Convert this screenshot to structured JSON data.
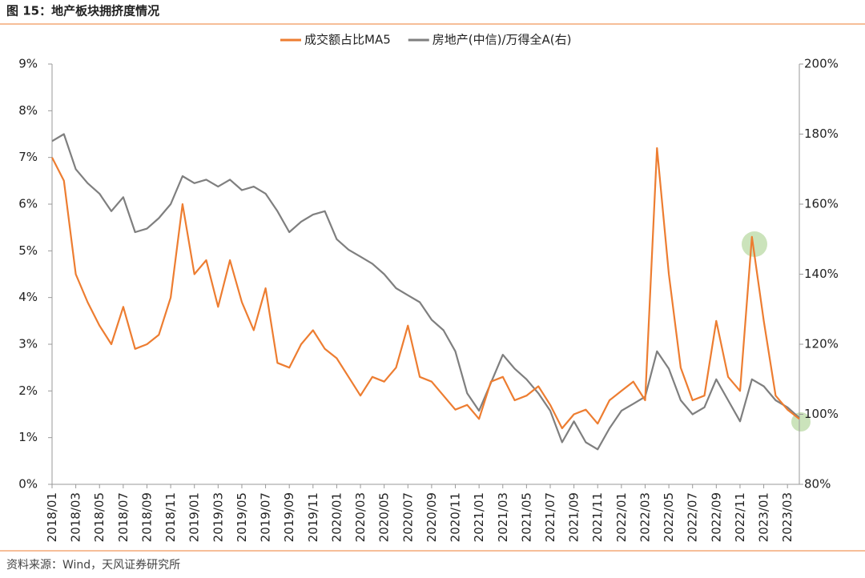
{
  "title": "图 15：地产板块拥挤度情况",
  "source": "资料来源：Wind，天风证券研究所",
  "chart_data": {
    "type": "line",
    "categories": [
      "2018/01",
      null,
      "2018/03",
      null,
      "2018/05",
      null,
      "2018/07",
      null,
      "2018/09",
      null,
      "2018/11",
      null,
      "2019/01",
      null,
      "2019/03",
      null,
      "2019/05",
      null,
      "2019/07",
      null,
      "2019/09",
      null,
      "2019/11",
      null,
      "2020/01",
      null,
      "2020/03",
      null,
      "2020/05",
      null,
      "2020/07",
      null,
      "2020/09",
      null,
      "2020/11",
      null,
      "2021/01",
      null,
      "2021/03",
      null,
      "2021/05",
      null,
      "2021/07",
      null,
      "2021/09",
      null,
      "2021/11",
      null,
      "2022/01",
      null,
      "2022/03",
      null,
      "2022/05",
      null,
      "2022/07",
      null,
      "2022/09",
      null,
      "2022/11",
      null,
      "2023/01",
      null,
      "2023/03",
      null
    ],
    "series": [
      {
        "name": "成交额占比MA5",
        "color": "#ed7d31",
        "values": [
          7.0,
          6.5,
          4.5,
          3.9,
          3.4,
          3.0,
          3.8,
          2.9,
          3.0,
          3.2,
          4.0,
          6.0,
          4.5,
          4.8,
          3.8,
          4.8,
          3.9,
          3.3,
          4.2,
          2.6,
          2.5,
          3.0,
          3.3,
          2.9,
          2.7,
          2.3,
          1.9,
          2.3,
          2.2,
          2.5,
          3.4,
          2.3,
          2.2,
          1.9,
          1.6,
          1.7,
          1.4,
          2.2,
          2.3,
          1.8,
          1.9,
          2.1,
          1.7,
          1.2,
          1.5,
          1.6,
          1.3,
          1.8,
          2.0,
          2.2,
          1.8,
          7.2,
          4.5,
          2.5,
          1.8,
          1.9,
          3.5,
          2.3,
          2.0,
          5.3,
          3.5,
          1.9,
          1.6,
          1.4
        ]
      },
      {
        "name": "房地产(中信)/万得全A(右)",
        "color": "#7f7f7f",
        "axis": "y2",
        "values": [
          178,
          180,
          170,
          166,
          163,
          158,
          162,
          152,
          153,
          156,
          160,
          168,
          166,
          167,
          165,
          167,
          164,
          165,
          163,
          158,
          152,
          155,
          157,
          158,
          150,
          147,
          145,
          143,
          140,
          136,
          134,
          132,
          127,
          124,
          118,
          106,
          101,
          109,
          117,
          113,
          110,
          106,
          101,
          92,
          98,
          92,
          90,
          96,
          101,
          103,
          105,
          118,
          113,
          104,
          100,
          102,
          110,
          104,
          98,
          110,
          108,
          104,
          102,
          99
        ]
      }
    ],
    "ylim": [
      0,
      9
    ],
    "yticks": [
      {
        "value": 0,
        "label": "0%"
      },
      {
        "value": 1,
        "label": "1%"
      },
      {
        "value": 2,
        "label": "2%"
      },
      {
        "value": 3,
        "label": "3%"
      },
      {
        "value": 4,
        "label": "4%"
      },
      {
        "value": 5,
        "label": "5%"
      },
      {
        "value": 6,
        "label": "6%"
      },
      {
        "value": 7,
        "label": "7%"
      },
      {
        "value": 8,
        "label": "8%"
      },
      {
        "value": 9,
        "label": "9%"
      }
    ],
    "y2lim": [
      80,
      200
    ],
    "y2ticks": [
      {
        "value": 80,
        "label": "80%"
      },
      {
        "value": 100,
        "label": "100%"
      },
      {
        "value": 120,
        "label": "120%"
      },
      {
        "value": 140,
        "label": "140%"
      },
      {
        "value": 160,
        "label": "160%"
      },
      {
        "value": 180,
        "label": "180%"
      },
      {
        "value": 200,
        "label": "200%"
      }
    ],
    "legend": "top"
  }
}
